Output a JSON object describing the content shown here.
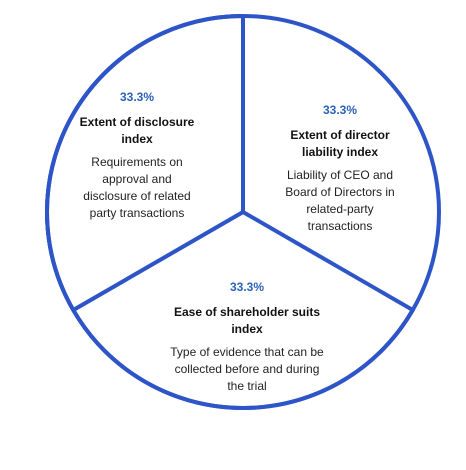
{
  "chart_data": {
    "type": "pie",
    "title": "",
    "colors": {
      "fill": "#ffffff",
      "border": "#2e55c8",
      "percent": "#2a62b8",
      "title": "#111111",
      "description": "#222222"
    },
    "slices": [
      {
        "value": 33.3,
        "percent_label": "33.3%",
        "title_lines": [
          "Extent of disclosure",
          "index"
        ],
        "desc_lines": [
          "Requirements on",
          "approval and",
          "disclosure of related",
          "party transactions"
        ]
      },
      {
        "value": 33.3,
        "percent_label": "33.3%",
        "title_lines": [
          "Extent of director",
          "liability index"
        ],
        "desc_lines": [
          "Liability of CEO and",
          "Board of Directors in",
          "related-party",
          "transactions"
        ]
      },
      {
        "value": 33.3,
        "percent_label": "33.3%",
        "title_lines": [
          "Ease of shareholder suits",
          "index"
        ],
        "desc_lines": [
          "Type of evidence that can be",
          "collected before and during",
          "the trial"
        ]
      }
    ]
  }
}
